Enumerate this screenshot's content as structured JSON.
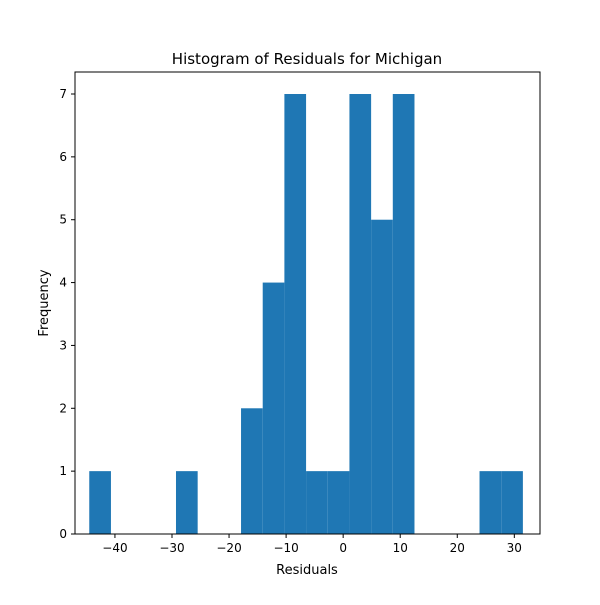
{
  "chart_data": {
    "type": "bar",
    "title": "Histogram of Residuals for Michigan",
    "xlabel": "Residuals",
    "ylabel": "Frequency",
    "xlim": [
      -47,
      34.5
    ],
    "ylim": [
      0,
      7.35
    ],
    "xticks": [
      -40,
      -30,
      -20,
      -10,
      0,
      10,
      20,
      30
    ],
    "yticks": [
      0,
      1,
      2,
      3,
      4,
      5,
      6,
      7
    ],
    "grid": false,
    "bar_color": "#1f77b4",
    "bins": [
      {
        "x0": -44.5,
        "x1": -40.7,
        "count": 1
      },
      {
        "x0": -40.7,
        "x1": -36.9,
        "count": 0
      },
      {
        "x0": -36.9,
        "x1": -33.1,
        "count": 0
      },
      {
        "x0": -33.1,
        "x1": -29.3,
        "count": 0
      },
      {
        "x0": -29.3,
        "x1": -25.5,
        "count": 1
      },
      {
        "x0": -25.5,
        "x1": -21.7,
        "count": 0
      },
      {
        "x0": -21.7,
        "x1": -17.9,
        "count": 0
      },
      {
        "x0": -17.9,
        "x1": -14.1,
        "count": 2
      },
      {
        "x0": -14.1,
        "x1": -10.3,
        "count": 4
      },
      {
        "x0": -10.3,
        "x1": -6.5,
        "count": 7
      },
      {
        "x0": -6.5,
        "x1": -2.7,
        "count": 1
      },
      {
        "x0": -2.7,
        "x1": 1.1,
        "count": 1
      },
      {
        "x0": 1.1,
        "x1": 4.9,
        "count": 7
      },
      {
        "x0": 4.9,
        "x1": 8.7,
        "count": 5
      },
      {
        "x0": 8.7,
        "x1": 12.5,
        "count": 7
      },
      {
        "x0": 12.5,
        "x1": 16.3,
        "count": 0
      },
      {
        "x0": 16.3,
        "x1": 20.1,
        "count": 0
      },
      {
        "x0": 20.1,
        "x1": 23.9,
        "count": 0
      },
      {
        "x0": 23.9,
        "x1": 27.7,
        "count": 1
      },
      {
        "x0": 27.7,
        "x1": 31.5,
        "count": 1
      }
    ]
  }
}
